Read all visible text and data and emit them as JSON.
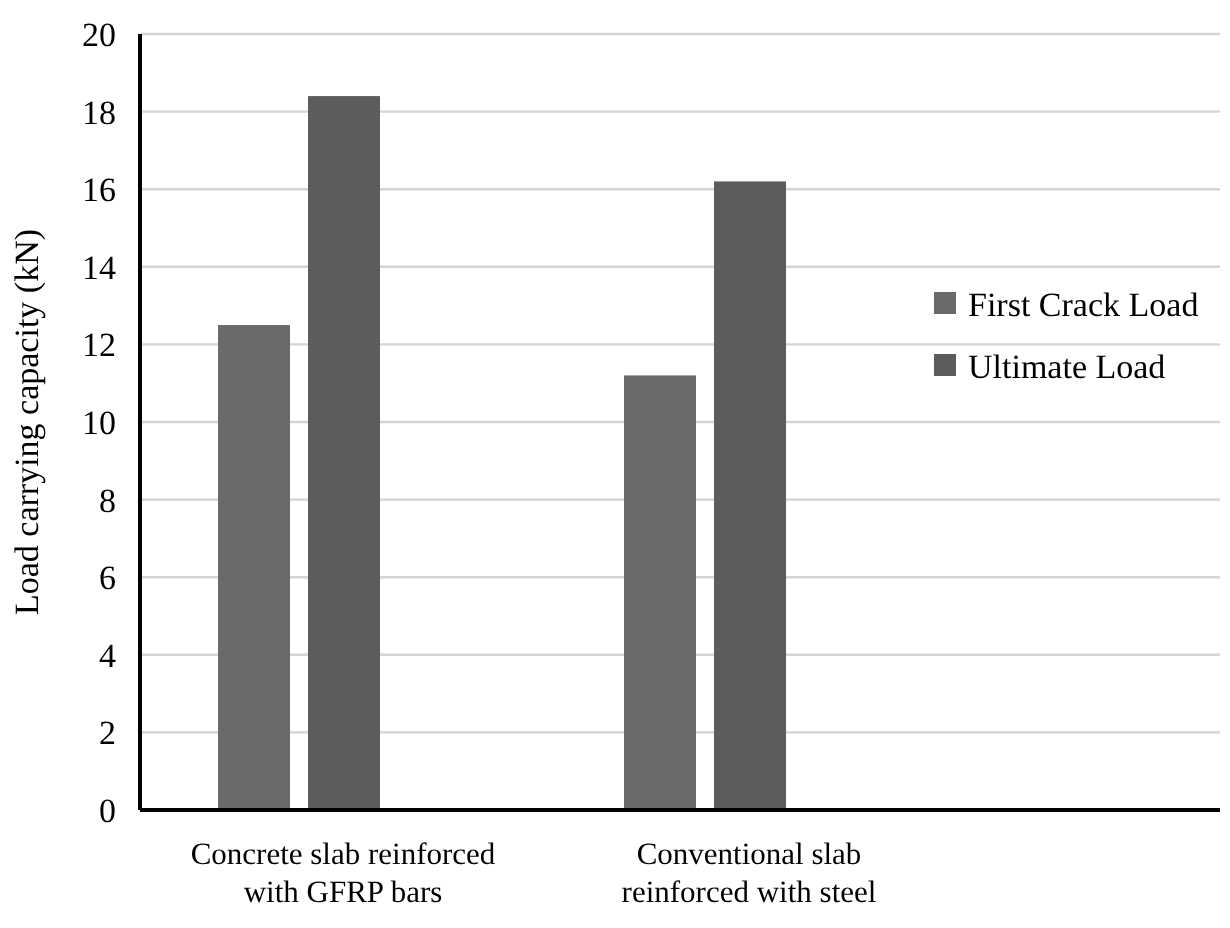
{
  "chart_data": {
    "type": "bar",
    "ylabel": "Load carrying capacity (kN)",
    "categories": [
      "Concrete slab reinforced with GFRP bars",
      "Conventional slab reinforced with steel"
    ],
    "series": [
      {
        "name": "First Crack Load",
        "color": "#6a6a6a",
        "values": [
          12.5,
          11.2
        ]
      },
      {
        "name": "Ultimate Load",
        "color": "#5c5c5c",
        "values": [
          18.4,
          16.2
        ]
      }
    ],
    "ylim": [
      0,
      20
    ],
    "yticks": [
      0,
      2,
      4,
      6,
      8,
      10,
      12,
      14,
      16,
      18,
      20
    ],
    "grid": "y",
    "legend": "right"
  }
}
